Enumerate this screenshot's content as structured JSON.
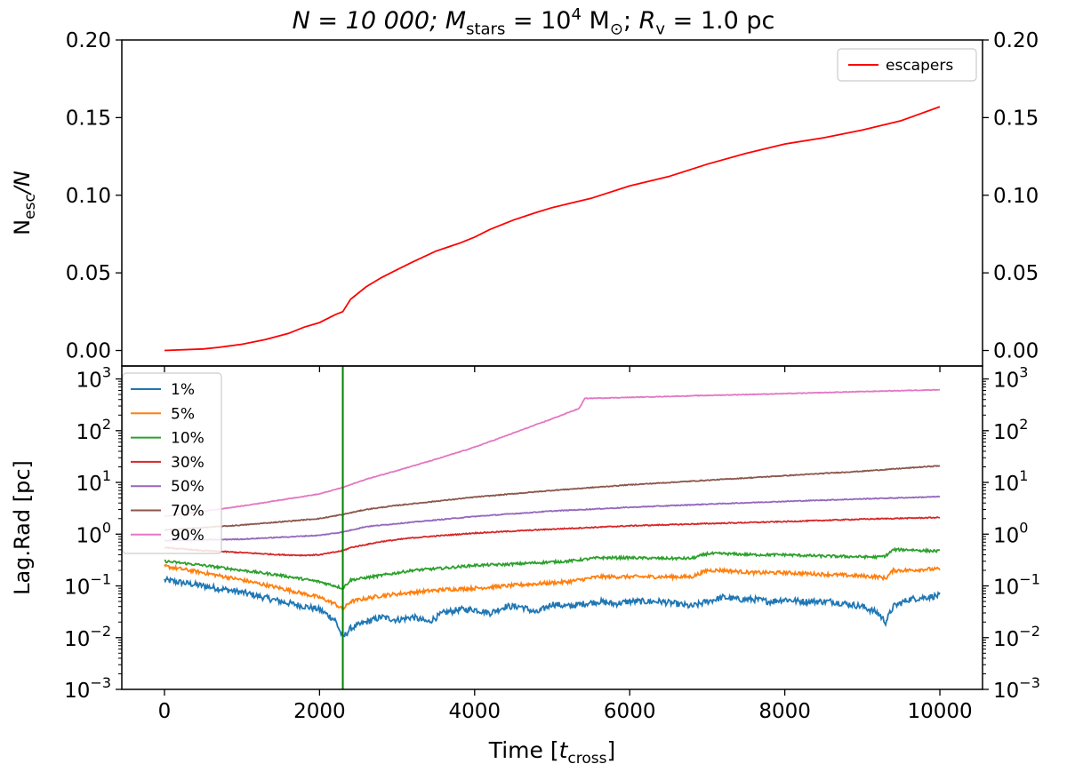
{
  "title": {
    "n_part": "N = 10 000; ",
    "m_symbol": "M",
    "m_sub": "stars",
    "m_eq": " = 10",
    "m_exp": "4",
    "m_unit": " M",
    "m_sun": "⊙",
    "sep": "; ",
    "r_symbol": "R",
    "r_sub": "v",
    "r_value": " = 1.0 pc"
  },
  "chart_data": [
    {
      "type": "line",
      "panel": "top",
      "ylabel_main": "N",
      "ylabel_sub": "esc",
      "ylabel_rest": "/N",
      "ylim": [
        -0.01,
        0.2
      ],
      "yticks": [
        0.0,
        0.05,
        0.1,
        0.15,
        0.2
      ],
      "ytick_labels": [
        "0.00",
        "0.05",
        "0.10",
        "0.15",
        "0.20"
      ],
      "xlim": [
        -550,
        10550
      ],
      "legend": {
        "position": "top-right",
        "entries": [
          "escapers"
        ]
      },
      "series": [
        {
          "name": "escapers",
          "color": "#ff0000",
          "x": [
            0,
            500,
            700,
            1000,
            1300,
            1600,
            1800,
            2000,
            2200,
            2300,
            2400,
            2600,
            2800,
            3000,
            3200,
            3500,
            3800,
            4000,
            4200,
            4500,
            4800,
            5000,
            5500,
            6000,
            6500,
            7000,
            7500,
            8000,
            8500,
            9000,
            9500,
            10000
          ],
          "y": [
            0.0,
            0.001,
            0.002,
            0.004,
            0.007,
            0.011,
            0.015,
            0.018,
            0.023,
            0.025,
            0.033,
            0.041,
            0.047,
            0.052,
            0.057,
            0.064,
            0.069,
            0.073,
            0.078,
            0.084,
            0.089,
            0.092,
            0.098,
            0.106,
            0.112,
            0.12,
            0.127,
            0.133,
            0.137,
            0.142,
            0.148,
            0.157
          ]
        }
      ]
    },
    {
      "type": "line",
      "panel": "bottom",
      "yscale": "log",
      "ylabel": "Lag.Rad [pc]",
      "xlabel_main": "Time [",
      "xlabel_var": "t",
      "xlabel_sub": "cross",
      "xlabel_end": "]",
      "ylim_exp": [
        -3,
        3.25
      ],
      "ytick_base": "10",
      "ytick_exps": [
        "−3",
        "−2",
        "−1",
        "0",
        "1",
        "2",
        "3"
      ],
      "xlim": [
        -550,
        10550
      ],
      "xticks": [
        0,
        2000,
        4000,
        6000,
        8000,
        10000
      ],
      "xtick_labels": [
        "0",
        "2000",
        "4000",
        "6000",
        "8000",
        "10000"
      ],
      "vline": {
        "x": 2300,
        "color": "#008000"
      },
      "legend": {
        "position": "top-left",
        "entries": [
          "1%",
          "5%",
          "10%",
          "30%",
          "50%",
          "70%",
          "90%"
        ]
      },
      "series": [
        {
          "name": "1%",
          "color": "#1f77b4",
          "noise": 0.06,
          "x": [
            0,
            500,
            1000,
            1500,
            2000,
            2200,
            2300,
            2400,
            2600,
            2800,
            3000,
            3200,
            3400,
            3600,
            3800,
            4000,
            4200,
            4400,
            4600,
            4800,
            5000,
            5200,
            5400,
            5600,
            5800,
            6000,
            6200,
            6400,
            6600,
            6800,
            7000,
            7200,
            7400,
            7600,
            7800,
            8000,
            8200,
            8400,
            8600,
            8800,
            9000,
            9200,
            9300,
            9400,
            9600,
            9800,
            10000
          ],
          "y": [
            0.13,
            0.1,
            0.075,
            0.05,
            0.035,
            0.022,
            0.01,
            0.015,
            0.02,
            0.025,
            0.022,
            0.025,
            0.02,
            0.03,
            0.035,
            0.035,
            0.03,
            0.04,
            0.04,
            0.03,
            0.045,
            0.04,
            0.045,
            0.05,
            0.045,
            0.05,
            0.05,
            0.05,
            0.045,
            0.04,
            0.05,
            0.06,
            0.055,
            0.055,
            0.05,
            0.055,
            0.05,
            0.05,
            0.05,
            0.045,
            0.04,
            0.03,
            0.02,
            0.04,
            0.055,
            0.06,
            0.065
          ]
        },
        {
          "name": "5%",
          "color": "#ff7f0e",
          "noise": 0.035,
          "x": [
            0,
            500,
            1000,
            1500,
            2000,
            2200,
            2300,
            2400,
            2800,
            3200,
            3600,
            4000,
            4400,
            4800,
            5200,
            5600,
            6000,
            6400,
            6800,
            7000,
            7200,
            7600,
            8000,
            8400,
            8800,
            9200,
            9300,
            9400,
            9600,
            9800,
            10000
          ],
          "y": [
            0.24,
            0.18,
            0.13,
            0.09,
            0.06,
            0.045,
            0.035,
            0.05,
            0.065,
            0.075,
            0.085,
            0.09,
            0.1,
            0.11,
            0.12,
            0.15,
            0.15,
            0.15,
            0.15,
            0.2,
            0.2,
            0.18,
            0.18,
            0.17,
            0.16,
            0.15,
            0.14,
            0.2,
            0.2,
            0.21,
            0.21
          ]
        },
        {
          "name": "10%",
          "color": "#2ca02c",
          "noise": 0.025,
          "x": [
            0,
            500,
            1000,
            1500,
            2000,
            2200,
            2300,
            2400,
            2800,
            3200,
            3600,
            4000,
            4400,
            4800,
            5200,
            5600,
            6000,
            6400,
            6800,
            7000,
            7200,
            7600,
            8000,
            8400,
            8800,
            9200,
            9300,
            9400,
            9600,
            9800,
            10000
          ],
          "y": [
            0.3,
            0.25,
            0.2,
            0.16,
            0.12,
            0.1,
            0.09,
            0.13,
            0.16,
            0.2,
            0.22,
            0.25,
            0.26,
            0.28,
            0.3,
            0.35,
            0.35,
            0.34,
            0.34,
            0.42,
            0.42,
            0.4,
            0.4,
            0.38,
            0.37,
            0.36,
            0.38,
            0.5,
            0.5,
            0.48,
            0.47
          ]
        },
        {
          "name": "30%",
          "color": "#d62728",
          "noise": 0.01,
          "x": [
            0,
            500,
            1000,
            1500,
            1800,
            2000,
            2200,
            2300,
            2400,
            2800,
            3200,
            4000,
            5000,
            6000,
            7000,
            8000,
            9000,
            10000
          ],
          "y": [
            0.55,
            0.48,
            0.44,
            0.4,
            0.39,
            0.4,
            0.45,
            0.48,
            0.55,
            0.72,
            0.85,
            1.05,
            1.25,
            1.45,
            1.6,
            1.75,
            1.95,
            2.1
          ]
        },
        {
          "name": "50%",
          "color": "#9467bd",
          "noise": 0.008,
          "x": [
            0,
            1000,
            2000,
            2300,
            2600,
            3000,
            4000,
            5000,
            6000,
            7000,
            8000,
            9000,
            10000
          ],
          "y": [
            0.75,
            0.8,
            0.95,
            1.1,
            1.4,
            1.6,
            2.2,
            2.8,
            3.3,
            3.8,
            4.3,
            4.8,
            5.3
          ]
        },
        {
          "name": "70%",
          "color": "#8c564b",
          "noise": 0.008,
          "x": [
            0,
            1000,
            2000,
            2300,
            2600,
            3000,
            4000,
            5000,
            6000,
            7000,
            8000,
            9000,
            10000
          ],
          "y": [
            1.2,
            1.5,
            2.0,
            2.4,
            3.0,
            3.6,
            5.2,
            7.0,
            9.0,
            11.0,
            13.5,
            16.5,
            21.0
          ]
        },
        {
          "name": "90%",
          "color": "#e377c2",
          "noise": 0.006,
          "x": [
            0,
            1000,
            2000,
            2300,
            2600,
            3000,
            3500,
            4000,
            4500,
            5000,
            5350,
            5420,
            6000,
            7000,
            8000,
            9000,
            10000
          ],
          "y": [
            2.2,
            3.5,
            6.0,
            8.0,
            11.5,
            17.0,
            28.0,
            48.0,
            90.0,
            170.0,
            270.0,
            420.0,
            440.0,
            480.0,
            520.0,
            570.0,
            620.0
          ]
        }
      ]
    }
  ]
}
